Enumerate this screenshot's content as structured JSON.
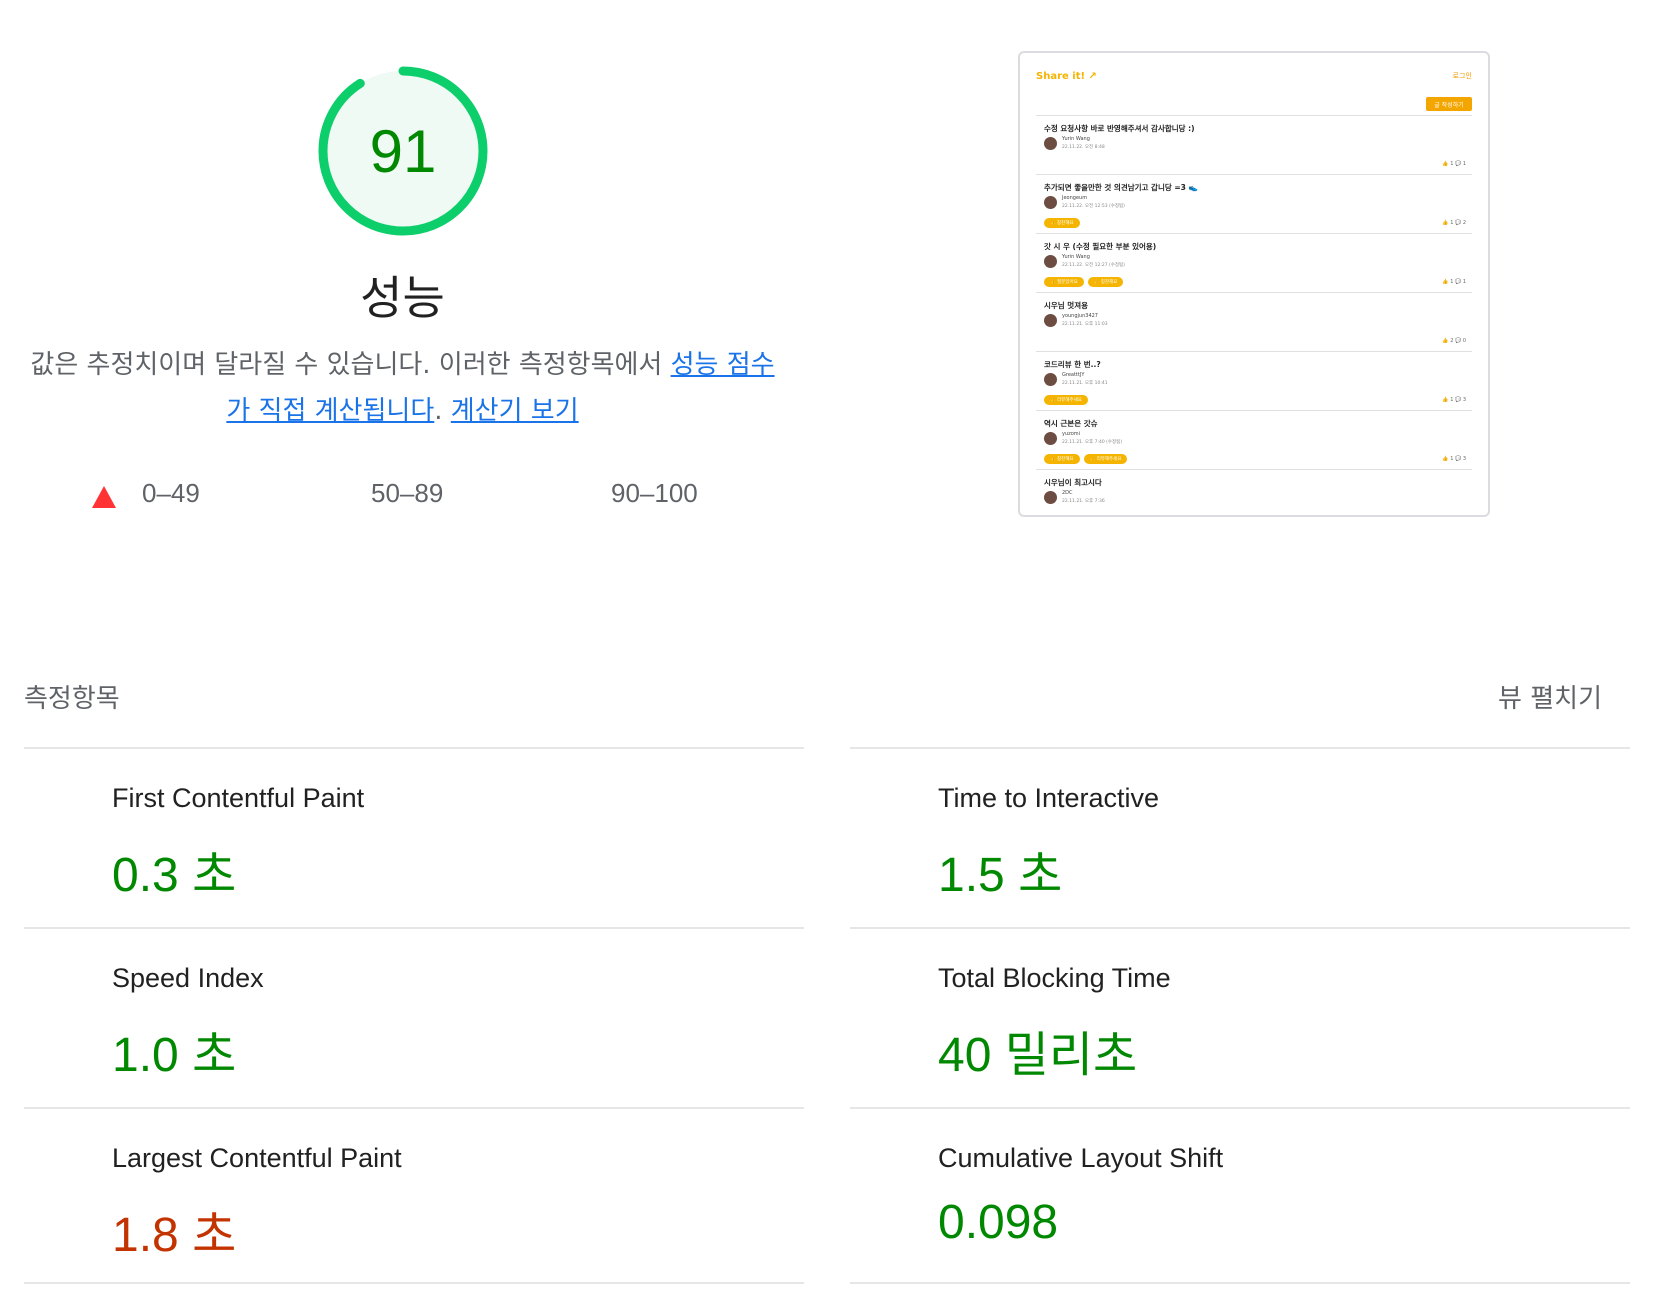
{
  "gauge": {
    "score": "91",
    "score_fraction": 0.91,
    "title": "성능",
    "ring_color": "#0cce6b",
    "fill_color": "#eefaf3",
    "text_color": "#008800"
  },
  "description": {
    "text_1": "값은 추정치이며 달라질 수 있습니다. 이러한 측정항목에서 ",
    "link_1": "성능 점수가 직접 계산됩니다",
    "text_2": ". ",
    "link_2": "계산기 보기"
  },
  "legend": {
    "fail": "0–49",
    "average": "50–89",
    "pass": "90–100"
  },
  "thumbnail": {
    "logo": "Share it! ↗",
    "login": "로그인",
    "write_button": "글 작성하기",
    "posts": [
      {
        "title": "수정 요청사항 바로 반영해주셔서 감사합니당 :)",
        "author": "Yurin Wang",
        "date": "22.11.22. 오전 8:48",
        "tags": [],
        "likes": "👍 1",
        "comments": "💬 1"
      },
      {
        "title": "추가되면 좋을만한 것 의견남기고 갑니당 =3 👟",
        "author": "Jeongeum",
        "date": "22.11.22. 오전 12:53 (수정됨)",
        "tags": [
          "👍 칭찬해요"
        ],
        "likes": "👍 1",
        "comments": "💬 2"
      },
      {
        "title": "갓 시 우 (수정 필요한 부분 있어용)",
        "author": "Yurin Wang",
        "date": "22.11.22. 오전 12:27 (수정됨)",
        "tags": [
          "👍 질문있어요",
          "👍 칭찬해요"
        ],
        "likes": "👍 1",
        "comments": "💬 1"
      },
      {
        "title": "시우님 멋져용",
        "author": "youngjun3427",
        "date": "22.11.21. 오후 11:03",
        "tags": [],
        "likes": "👍 2",
        "comments": "💬 0"
      },
      {
        "title": "코드리뷰 한 번..?",
        "author": "GreatttJY",
        "date": "22.11.21. 오후 10:41",
        "tags": [
          "👍 리뷰해주세요"
        ],
        "likes": "👍 1",
        "comments": "💬 3"
      },
      {
        "title": "역시 근본은 갓슈",
        "author": "yuzomi",
        "date": "22.11.21. 오후 7:40 (수정됨)",
        "tags": [
          "👍 칭찬해요",
          "👍 리뷰해주세요"
        ],
        "likes": "👍 1",
        "comments": "💬 3"
      },
      {
        "title": "시우님이 최고시다",
        "author": "2DC",
        "date": "22.11.21. 오후 7:36",
        "tags": [],
        "likes": "",
        "comments": ""
      }
    ]
  },
  "metrics": {
    "title": "측정항목",
    "expand_label": "뷰 펼치기",
    "left": [
      {
        "name": "First Contentful Paint",
        "value": "0.3 초",
        "status": "pass"
      },
      {
        "name": "Speed Index",
        "value": "1.0 초",
        "status": "pass"
      },
      {
        "name": "Largest Contentful Paint",
        "value": "1.8 초",
        "status": "avg"
      }
    ],
    "right": [
      {
        "name": "Time to Interactive",
        "value": "1.5 초",
        "status": "pass"
      },
      {
        "name": "Total Blocking Time",
        "value": "40 밀리초",
        "status": "pass"
      },
      {
        "name": "Cumulative Layout Shift",
        "value": "0.098",
        "status": "pass"
      }
    ]
  }
}
